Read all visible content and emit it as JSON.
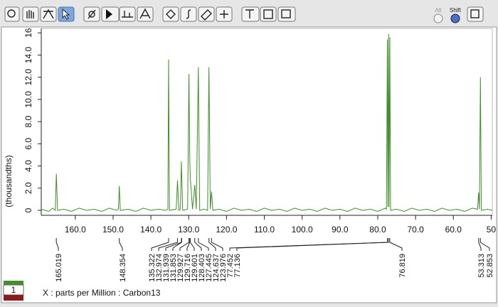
{
  "ui": {
    "alt": "Alt",
    "shift": "Shift",
    "view_tab": "1"
  },
  "chart_data": {
    "type": "line",
    "x_label": "X : parts per Million : Carbon13",
    "y_label": "(thousandths)",
    "color": "#3f8f2a",
    "xlim": [
      169,
      49.7
    ],
    "ylim": [
      -0.45,
      16.4
    ],
    "xticks": [
      {
        "value": 160,
        "label": "160.0"
      },
      {
        "value": 150,
        "label": "150.0"
      },
      {
        "value": 140,
        "label": "140.0"
      },
      {
        "value": 130,
        "label": "130.0"
      },
      {
        "value": 120,
        "label": "120.0"
      },
      {
        "value": 110,
        "label": "110.0"
      },
      {
        "value": 100,
        "label": "100.0"
      },
      {
        "value": 90,
        "label": "90.0"
      },
      {
        "value": 80,
        "label": "80.0"
      },
      {
        "value": 70,
        "label": "70.0"
      },
      {
        "value": 60,
        "label": "60.0"
      },
      50
    ],
    "yticks": [
      0,
      {
        "value": 2,
        "label": "2.0"
      },
      {
        "value": 4,
        "label": "4.0"
      },
      {
        "value": 6,
        "label": "6.0"
      },
      {
        "value": 8,
        "label": "8.0"
      },
      {
        "value": 10,
        "label": "10.0"
      },
      {
        "value": 12,
        "label": "12.0"
      },
      {
        "value": 14,
        "label": "14.0"
      },
      16
    ],
    "peaks": [
      165.019,
      148.354,
      135.322,
      132.974,
      131.939,
      131.853,
      129.927,
      129.716,
      129.601,
      128.403,
      127.445,
      124.637,
      123.976,
      77.452,
      77.136,
      76.819,
      53.313,
      52.853
    ],
    "x": [
      169,
      167,
      166,
      165.3,
      165.02,
      164.7,
      163,
      161,
      159,
      157,
      155,
      153,
      151,
      149,
      148.6,
      148.35,
      148.1,
      146,
      144,
      142,
      140,
      138,
      136,
      135.5,
      135.32,
      135.1,
      133.3,
      132.97,
      132.6,
      132.2,
      131.94,
      131.6,
      130.3,
      129.93,
      129.72,
      129.6,
      129.0,
      128.4,
      128.0,
      127.45,
      127.1,
      126,
      125,
      124.64,
      124.3,
      123.98,
      123.6,
      122,
      120,
      118,
      116,
      114,
      112,
      110,
      108,
      106,
      104,
      102,
      100,
      98,
      96,
      94,
      92,
      90,
      88,
      86,
      84,
      82,
      80,
      78,
      77.7,
      77.45,
      77.3,
      77.14,
      77.0,
      76.82,
      76.6,
      75,
      73,
      71,
      69,
      67,
      65,
      63,
      61,
      59,
      57,
      55,
      53.6,
      53.31,
      53.1,
      52.85,
      52.6,
      51,
      49.7
    ],
    "values": [
      0.1,
      -0.1,
      0.2,
      0.0,
      3.3,
      0.0,
      0.1,
      -0.1,
      0.2,
      0.0,
      0.1,
      -0.1,
      0.2,
      0.0,
      0.1,
      2.2,
      0.0,
      0.1,
      -0.1,
      0.2,
      0.0,
      0.1,
      0.0,
      0.1,
      13.6,
      0.0,
      0.1,
      2.7,
      0.0,
      0.1,
      4.4,
      0.0,
      0.1,
      12.3,
      5.0,
      3.0,
      0.1,
      2.3,
      0.1,
      12.9,
      0.0,
      0.1,
      0.0,
      12.9,
      0.1,
      1.7,
      0.0,
      0.1,
      -0.1,
      0.2,
      0.0,
      0.1,
      -0.1,
      0.2,
      0.0,
      0.1,
      -0.1,
      0.2,
      0.0,
      0.1,
      -0.1,
      0.2,
      0.0,
      0.1,
      -0.1,
      0.2,
      0.0,
      0.1,
      -0.1,
      0.2,
      0.1,
      15.4,
      0.3,
      15.9,
      0.3,
      15.6,
      0.0,
      0.1,
      -0.1,
      0.2,
      0.0,
      0.1,
      -0.1,
      0.2,
      0.0,
      0.1,
      -0.1,
      0.2,
      0.1,
      1.6,
      0.1,
      12.0,
      0.0,
      0.1,
      0.0
    ]
  }
}
